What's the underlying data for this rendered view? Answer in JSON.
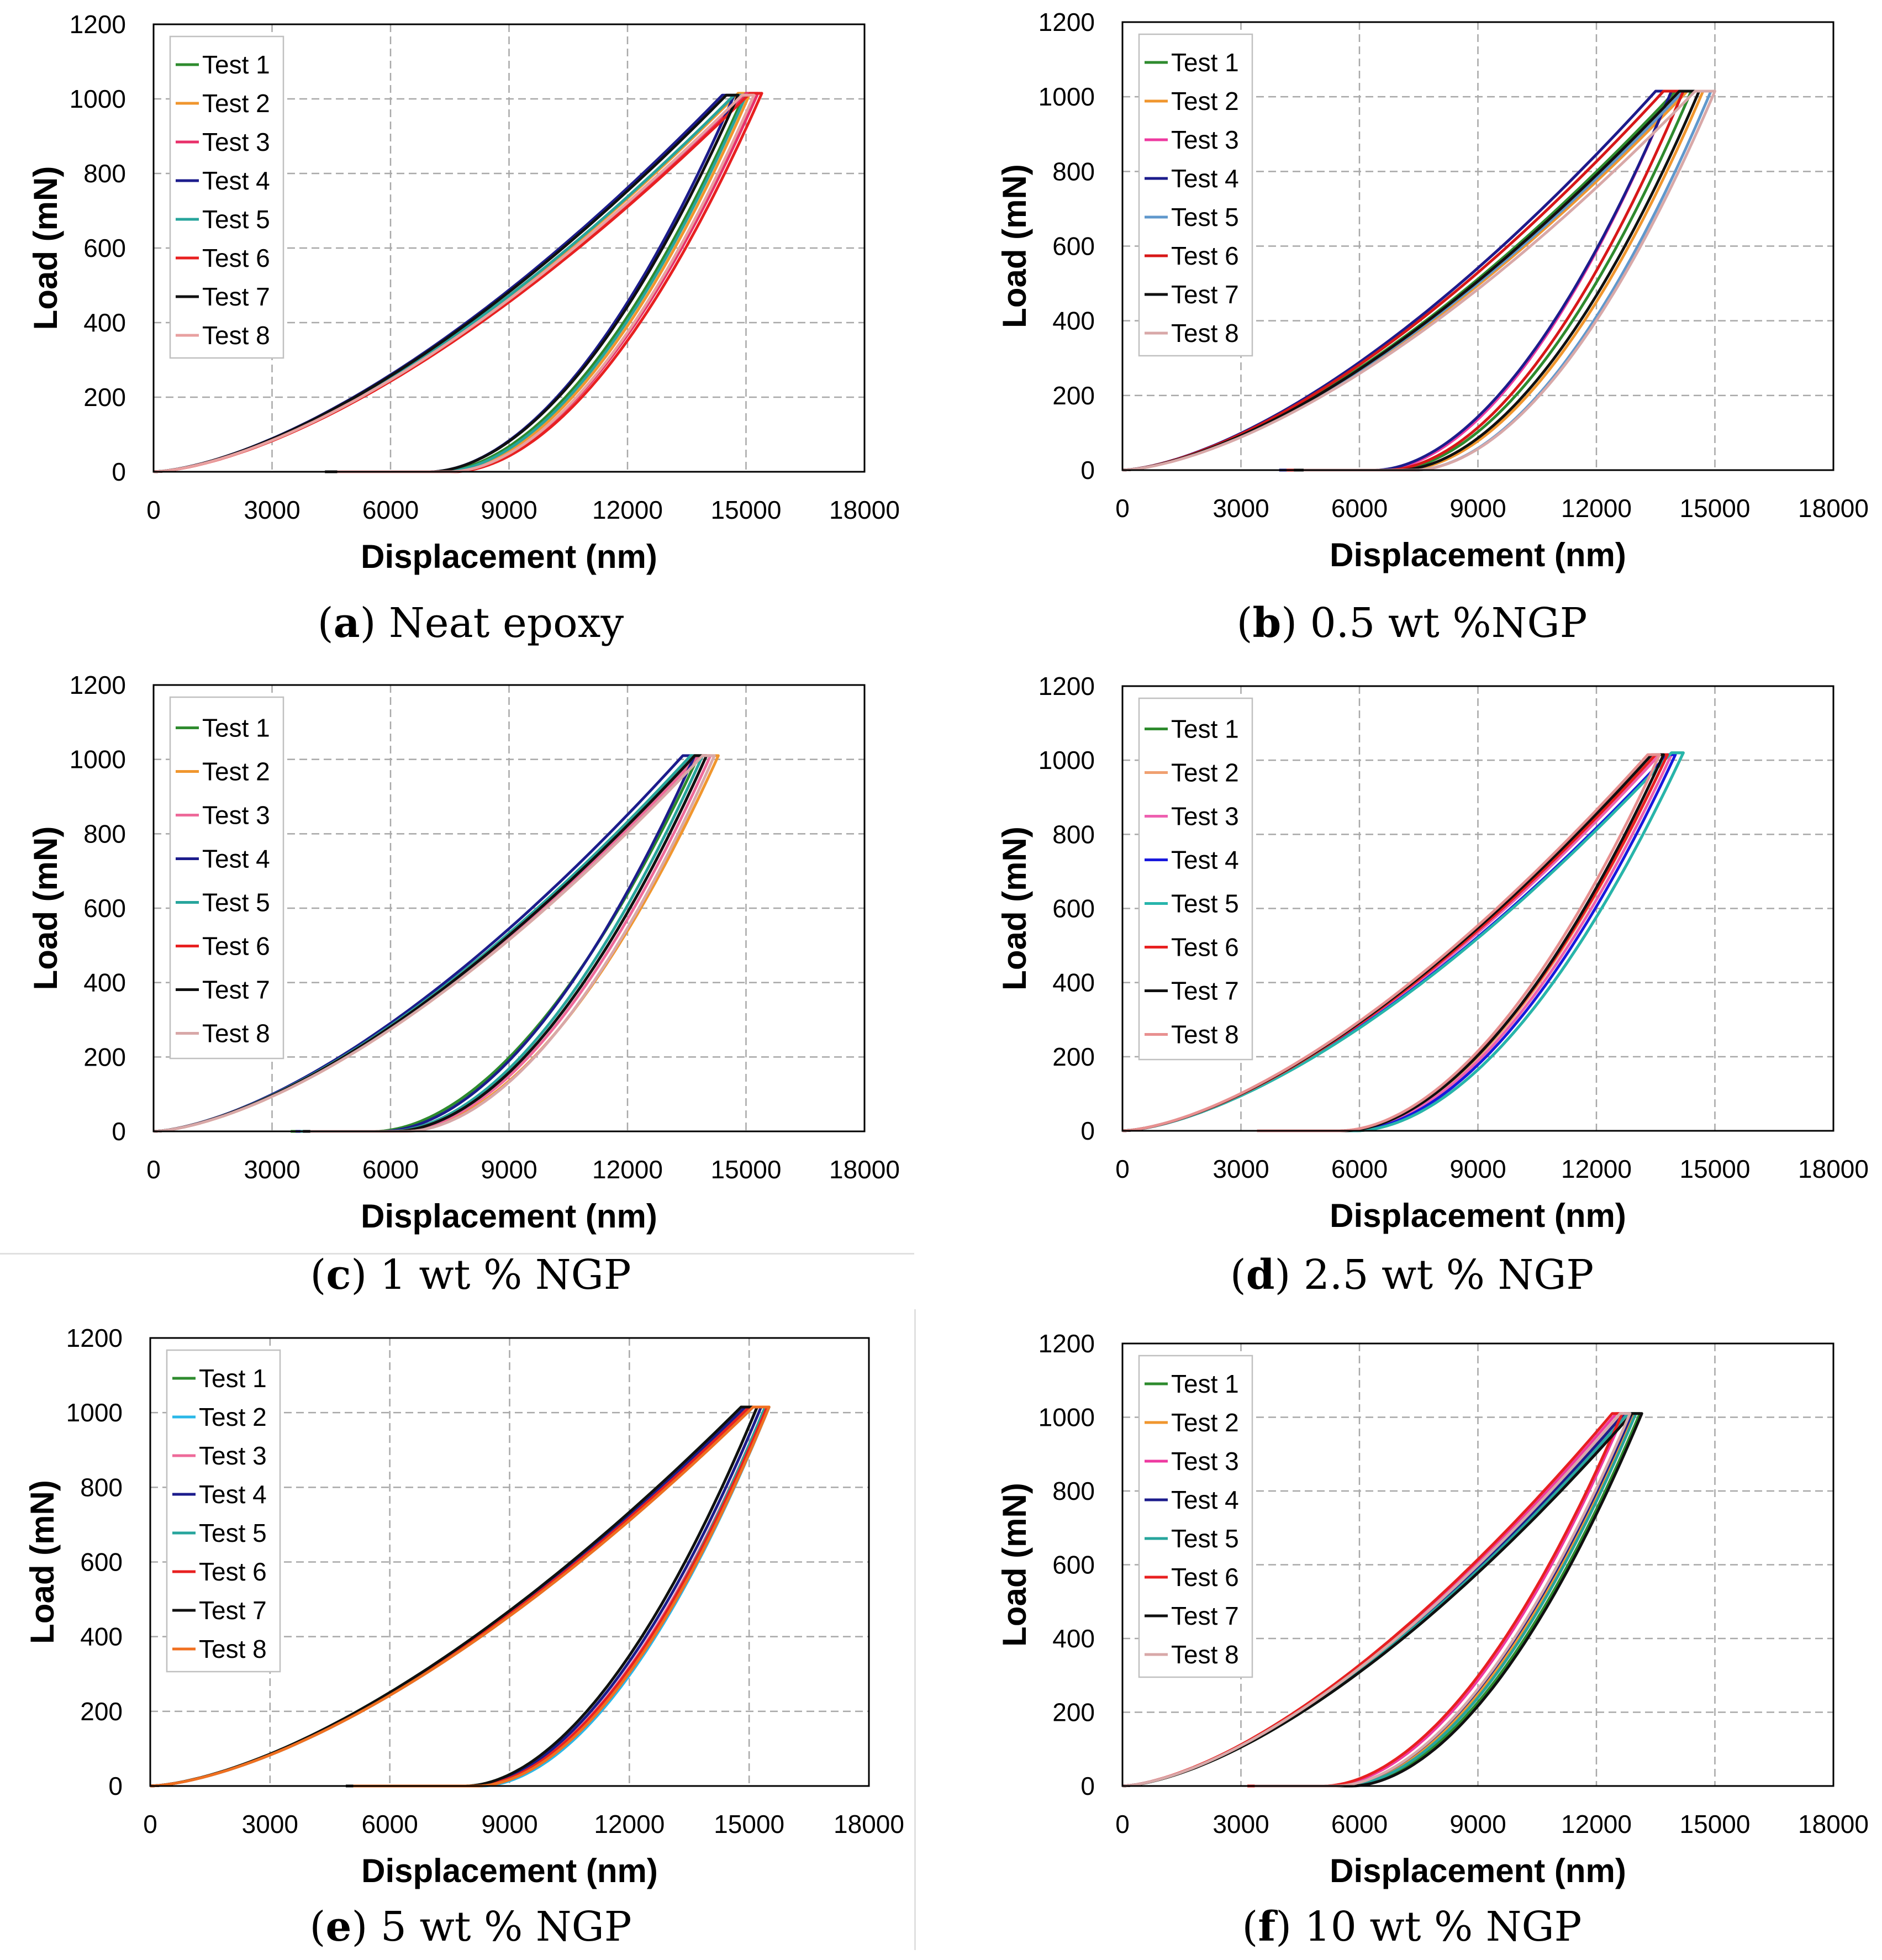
{
  "figure": {
    "palettes": {
      "p1": [
        "#2e8b2e",
        "#f0962e",
        "#e8306a",
        "#1c1c8c",
        "#27a59c",
        "#e82020",
        "#101010",
        "#e8a0a0"
      ],
      "p2": [
        "#2e8b2e",
        "#f0962e",
        "#ee3aa0",
        "#1c1c8c",
        "#6098cc",
        "#d81818",
        "#101010",
        "#d8a8a8"
      ],
      "p3": [
        "#2e8b2e",
        "#f0962e",
        "#ee6a9a",
        "#1c1c8c",
        "#27a59c",
        "#e82020",
        "#101010",
        "#d8a8a8"
      ],
      "p4": [
        "#2e8b2e",
        "#f0a070",
        "#ee60b0",
        "#1818dd",
        "#27b5ac",
        "#e82020",
        "#101010",
        "#e89090"
      ],
      "p5": [
        "#2e8b2e",
        "#2ab8e8",
        "#ee6a9a",
        "#1c1c8c",
        "#27a59c",
        "#e82020",
        "#101010",
        "#f07020"
      ],
      "p6": [
        "#2e8b2e",
        "#f0962e",
        "#ee3aa0",
        "#1c1c8c",
        "#27a59c",
        "#e82020",
        "#101010",
        "#d8a8a8"
      ]
    }
  },
  "chart_data": [
    {
      "type": "line",
      "caption_letter": "a",
      "caption_text": " Neat epoxy",
      "xlabel": "Displacement (nm)",
      "ylabel": "Load (mN)",
      "xlim": [
        0,
        18000
      ],
      "ylim": [
        0,
        1200
      ],
      "xticks": [
        "0",
        "3000",
        "6000",
        "9000",
        "12000",
        "15000",
        "18000"
      ],
      "yticks": [
        "0",
        "200",
        "400",
        "600",
        "800",
        "1000",
        "1200"
      ],
      "grid": true,
      "legend": "top-left",
      "legend_labels": [
        "Test 1",
        "Test 2",
        "Test 3",
        "Test 4",
        "Test 5",
        "Test 6",
        "Test 7",
        "Test 8"
      ],
      "palette": "p1",
      "series": [
        {
          "name": "Test 1",
          "max_load": 1010,
          "load_end": 14700,
          "hold_end": 14950,
          "residual": 7200
        },
        {
          "name": "Test 2",
          "max_load": 1015,
          "load_end": 14800,
          "hold_end": 15100,
          "residual": 7400
        },
        {
          "name": "Test 3",
          "max_load": 1015,
          "load_end": 15000,
          "hold_end": 15300,
          "residual": 7500
        },
        {
          "name": "Test 4",
          "max_load": 1010,
          "load_end": 14400,
          "hold_end": 14700,
          "residual": 7000
        },
        {
          "name": "Test 5",
          "max_load": 1010,
          "load_end": 14700,
          "hold_end": 15000,
          "residual": 7300
        },
        {
          "name": "Test 6",
          "max_load": 1015,
          "load_end": 15100,
          "hold_end": 15400,
          "residual": 7600
        },
        {
          "name": "Test 7",
          "max_load": 1010,
          "load_end": 14500,
          "hold_end": 14800,
          "residual": 7000
        },
        {
          "name": "Test 8",
          "max_load": 1010,
          "load_end": 14900,
          "hold_end": 15200,
          "residual": 7500
        }
      ]
    },
    {
      "type": "line",
      "caption_letter": "b",
      "caption_text": " 0.5 wt %NGP",
      "xlabel": "Displacement (nm)",
      "ylabel": "Load (mN)",
      "xlim": [
        0,
        18000
      ],
      "ylim": [
        0,
        1200
      ],
      "xticks": [
        "0",
        "3000",
        "6000",
        "9000",
        "12000",
        "15000",
        "18000"
      ],
      "yticks": [
        "0",
        "200",
        "400",
        "600",
        "800",
        "1000",
        "1200"
      ],
      "grid": true,
      "legend": "top-left",
      "legend_labels": [
        "Test 1",
        "Test 2",
        "Test 3",
        "Test 4",
        "Test 5",
        "Test 6",
        "Test 7",
        "Test 8"
      ],
      "palette": "p2",
      "series": [
        {
          "name": "Test 1",
          "max_load": 1015,
          "load_end": 14000,
          "hold_end": 14400,
          "residual": 6800
        },
        {
          "name": "Test 2",
          "max_load": 1015,
          "load_end": 14300,
          "hold_end": 14700,
          "residual": 7100
        },
        {
          "name": "Test 3",
          "max_load": 1015,
          "load_end": 13500,
          "hold_end": 13900,
          "residual": 6500
        },
        {
          "name": "Test 4",
          "max_load": 1015,
          "load_end": 13500,
          "hold_end": 13900,
          "residual": 6400
        },
        {
          "name": "Test 5",
          "max_load": 1015,
          "load_end": 14200,
          "hold_end": 14900,
          "residual": 7400
        },
        {
          "name": "Test 6",
          "max_load": 1015,
          "load_end": 13700,
          "hold_end": 14200,
          "residual": 6700
        },
        {
          "name": "Test 7",
          "max_load": 1015,
          "load_end": 14100,
          "hold_end": 14600,
          "residual": 7000
        },
        {
          "name": "Test 8",
          "max_load": 1015,
          "load_end": 14500,
          "hold_end": 15000,
          "residual": 7400
        }
      ]
    },
    {
      "type": "line",
      "caption_letter": "c",
      "caption_text": " 1 wt % NGP",
      "xlabel": "Displacement (nm)",
      "ylabel": "Load (mN)",
      "xlim": [
        0,
        18000
      ],
      "ylim": [
        0,
        1200
      ],
      "xticks": [
        "0",
        "3000",
        "6000",
        "9000",
        "12000",
        "15000",
        "18000"
      ],
      "yticks": [
        "0",
        "200",
        "400",
        "600",
        "800",
        "1000",
        "1200"
      ],
      "grid": true,
      "legend": "top-left",
      "legend_labels": [
        "Test 1",
        "Test 2",
        "Test 3",
        "Test 4",
        "Test 5",
        "Test 6",
        "Test 7",
        "Test 8"
      ],
      "palette": "p3",
      "series": [
        {
          "name": "Test 1",
          "max_load": 1010,
          "load_end": 13600,
          "hold_end": 13800,
          "residual": 5600
        },
        {
          "name": "Test 2",
          "max_load": 1010,
          "load_end": 13900,
          "hold_end": 14300,
          "residual": 6300
        },
        {
          "name": "Test 3",
          "max_load": 1010,
          "load_end": 13800,
          "hold_end": 14100,
          "residual": 6200
        },
        {
          "name": "Test 4",
          "max_load": 1010,
          "load_end": 13400,
          "hold_end": 13700,
          "residual": 5800
        },
        {
          "name": "Test 5",
          "max_load": 1010,
          "load_end": 13600,
          "hold_end": 13900,
          "residual": 6000
        },
        {
          "name": "Test 6",
          "max_load": 1010,
          "load_end": 13700,
          "hold_end": 14000,
          "residual": 6100
        },
        {
          "name": "Test 7",
          "max_load": 1010,
          "load_end": 13700,
          "hold_end": 14000,
          "residual": 6100
        },
        {
          "name": "Test 8",
          "max_load": 1010,
          "load_end": 13900,
          "hold_end": 14200,
          "residual": 6400
        }
      ]
    },
    {
      "type": "line",
      "caption_letter": "d",
      "caption_text": " 2.5 wt % NGP",
      "xlabel": "Displacement (nm)",
      "ylabel": "Load (mN)",
      "xlim": [
        0,
        18000
      ],
      "ylim": [
        0,
        1200
      ],
      "xticks": [
        "0",
        "3000",
        "6000",
        "9000",
        "12000",
        "15000",
        "18000"
      ],
      "yticks": [
        "0",
        "200",
        "400",
        "600",
        "800",
        "1000",
        "1200"
      ],
      "grid": true,
      "legend": "top-left",
      "legend_labels": [
        "Test 1",
        "Test 2",
        "Test 3",
        "Test 4",
        "Test 5",
        "Test 6",
        "Test 7",
        "Test 8"
      ],
      "palette": "p4",
      "series": [
        {
          "name": "Test 1",
          "max_load": 1020,
          "load_end": 13900,
          "hold_end": 14200,
          "residual": 5900
        },
        {
          "name": "Test 2",
          "max_load": 1015,
          "load_end": 13500,
          "hold_end": 13800,
          "residual": 5600
        },
        {
          "name": "Test 3",
          "max_load": 1015,
          "load_end": 13600,
          "hold_end": 13900,
          "residual": 5700
        },
        {
          "name": "Test 4",
          "max_load": 1015,
          "load_end": 13800,
          "hold_end": 14000,
          "residual": 5800
        },
        {
          "name": "Test 5",
          "max_load": 1020,
          "load_end": 13900,
          "hold_end": 14200,
          "residual": 5900
        },
        {
          "name": "Test 6",
          "max_load": 1015,
          "load_end": 13500,
          "hold_end": 13800,
          "residual": 5500
        },
        {
          "name": "Test 7",
          "max_load": 1015,
          "load_end": 13400,
          "hold_end": 13700,
          "residual": 5600
        },
        {
          "name": "Test 8",
          "max_load": 1015,
          "load_end": 13300,
          "hold_end": 13600,
          "residual": 5500
        }
      ]
    },
    {
      "type": "line",
      "caption_letter": "e",
      "caption_text": " 5 wt % NGP",
      "xlabel": "Displacement (nm)",
      "ylabel": "Load (mN)",
      "xlim": [
        0,
        18000
      ],
      "ylim": [
        0,
        1200
      ],
      "xticks": [
        "0",
        "3000",
        "6000",
        "9000",
        "12000",
        "15000",
        "18000"
      ],
      "yticks": [
        "0",
        "200",
        "400",
        "600",
        "800",
        "1000",
        "1200"
      ],
      "grid": true,
      "legend": "top-left",
      "legend_labels": [
        "Test 1",
        "Test 2",
        "Test 3",
        "Test 4",
        "Test 5",
        "Test 6",
        "Test 7",
        "Test 8"
      ],
      "palette": "p5",
      "series": [
        {
          "name": "Test 1",
          "max_load": 1015,
          "load_end": 14800,
          "hold_end": 15200,
          "residual": 7900
        },
        {
          "name": "Test 2",
          "max_load": 1015,
          "load_end": 15100,
          "hold_end": 15500,
          "residual": 8300
        },
        {
          "name": "Test 3",
          "max_load": 1015,
          "load_end": 15000,
          "hold_end": 15400,
          "residual": 8100
        },
        {
          "name": "Test 4",
          "max_load": 1015,
          "load_end": 14900,
          "hold_end": 15300,
          "residual": 8000
        },
        {
          "name": "Test 5",
          "max_load": 1015,
          "load_end": 15000,
          "hold_end": 15400,
          "residual": 8200
        },
        {
          "name": "Test 6",
          "max_load": 1015,
          "load_end": 15000,
          "hold_end": 15450,
          "residual": 8100
        },
        {
          "name": "Test 7",
          "max_load": 1015,
          "load_end": 14800,
          "hold_end": 15200,
          "residual": 7900
        },
        {
          "name": "Test 8",
          "max_load": 1015,
          "load_end": 15100,
          "hold_end": 15500,
          "residual": 8200
        }
      ]
    },
    {
      "type": "line",
      "caption_letter": "f",
      "caption_text": " 10 wt % NGP",
      "xlabel": "Displacement (nm)",
      "ylabel": "Load (mN)",
      "xlim": [
        0,
        18000
      ],
      "ylim": [
        0,
        1200
      ],
      "xticks": [
        "0",
        "3000",
        "6000",
        "9000",
        "12000",
        "15000",
        "18000"
      ],
      "yticks": [
        "0",
        "200",
        "400",
        "600",
        "800",
        "1000",
        "1200"
      ],
      "grid": true,
      "legend": "top-left",
      "legend_labels": [
        "Test 1",
        "Test 2",
        "Test 3",
        "Test 4",
        "Test 5",
        "Test 6",
        "Test 7",
        "Test 8"
      ],
      "palette": "p6",
      "series": [
        {
          "name": "Test 1",
          "max_load": 1010,
          "load_end": 12900,
          "hold_end": 13100,
          "residual": 5700
        },
        {
          "name": "Test 2",
          "max_load": 1010,
          "load_end": 12700,
          "hold_end": 12950,
          "residual": 5500
        },
        {
          "name": "Test 3",
          "max_load": 1010,
          "load_end": 12500,
          "hold_end": 12700,
          "residual": 5200
        },
        {
          "name": "Test 4",
          "max_load": 1010,
          "load_end": 12700,
          "hold_end": 12900,
          "residual": 5400
        },
        {
          "name": "Test 5",
          "max_load": 1010,
          "load_end": 12800,
          "hold_end": 13000,
          "residual": 5600
        },
        {
          "name": "Test 6",
          "max_load": 1010,
          "load_end": 12400,
          "hold_end": 12650,
          "residual": 5100
        },
        {
          "name": "Test 7",
          "max_load": 1010,
          "load_end": 12900,
          "hold_end": 13150,
          "residual": 5800
        },
        {
          "name": "Test 8",
          "max_load": 1010,
          "load_end": 12600,
          "hold_end": 12850,
          "residual": 5400
        }
      ]
    }
  ]
}
